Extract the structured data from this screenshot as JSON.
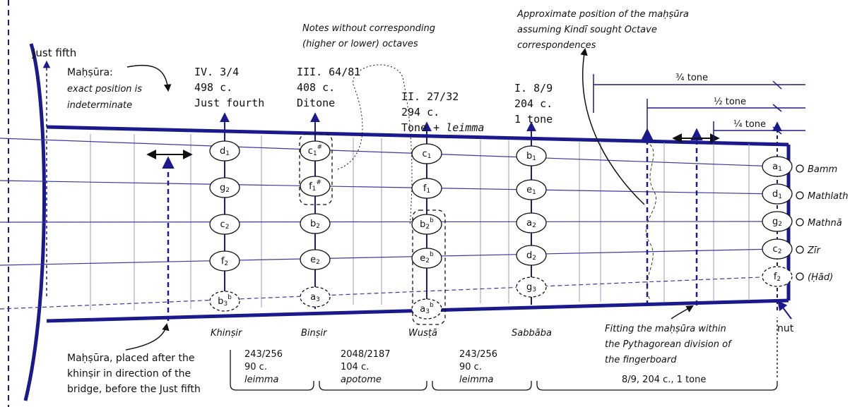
{
  "labels": {
    "just_fifth": "Just fifth",
    "mahsura_exact_1": "Maḥṣūra:",
    "mahsura_exact_2": "exact position is",
    "mahsura_exact_3": "indeterminate",
    "notes_wo_1": "Notes without corresponding",
    "notes_wo_2": "(higher or lower) octaves",
    "approx_1": "Approximate position of the maḥṣūra",
    "approx_2": "assuming Kindī sought Octave",
    "approx_3": "correspondences",
    "tone_34": "¾ tone",
    "tone_12": "½ tone",
    "tone_14": "¼ tone",
    "after_khinsir_1": "Maḥṣūra, placed after the",
    "after_khinsir_2": "khinṣir in direction of the",
    "after_khinsir_3": "bridge, before the Just fifth",
    "fitting_1": "Fitting the maḥṣūra within",
    "fitting_2": "the Pythagorean division of",
    "fitting_3": "the fingerboard",
    "nut": "nut"
  },
  "frets": [
    {
      "ratio": "IV. 3/4",
      "cents": "498 c.",
      "name": "Just fourth",
      "finger": "Khinṣir"
    },
    {
      "ratio": "III. 64/81",
      "cents": "408 c.",
      "name": "Ditone",
      "finger": "Binṣir"
    },
    {
      "ratio": "II. 27/32",
      "cents": "294 c.",
      "name": "Tone + ",
      "name_it": "leimma",
      "finger": "Wusṭā"
    },
    {
      "ratio": "I. 8/9",
      "cents": "204 c.",
      "name": "1 tone",
      "finger": "Sabbāba"
    }
  ],
  "strings": [
    "Bamm",
    "Mathlath",
    "Mathnā",
    "Zīr",
    "(Ḥād)"
  ],
  "notes": {
    "khinsir": [
      "d",
      "g",
      "c",
      "f",
      "b"
    ],
    "binsir": [
      "c",
      "f",
      "b",
      "e",
      "a"
    ],
    "wusta": [
      "c",
      "f",
      "b",
      "e",
      "a"
    ],
    "sabbaba": [
      "b",
      "e",
      "a",
      "d",
      "g"
    ],
    "nut": [
      "a",
      "d",
      "g",
      "c",
      "f"
    ]
  },
  "intervals": [
    {
      "ratio": "243/256",
      "cents": "90 c.",
      "name": "leimma"
    },
    {
      "ratio": "2048/2187",
      "cents": "104 c.",
      "name": "apotome"
    },
    {
      "ratio": "243/256",
      "cents": "90 c.",
      "name": "leimma"
    },
    {
      "label": "8/9, 204 c., 1 tone"
    }
  ],
  "colors": {
    "accent": "#1a1a8c",
    "line": "#3a3aa0",
    "fret": "#9a9ac8"
  }
}
